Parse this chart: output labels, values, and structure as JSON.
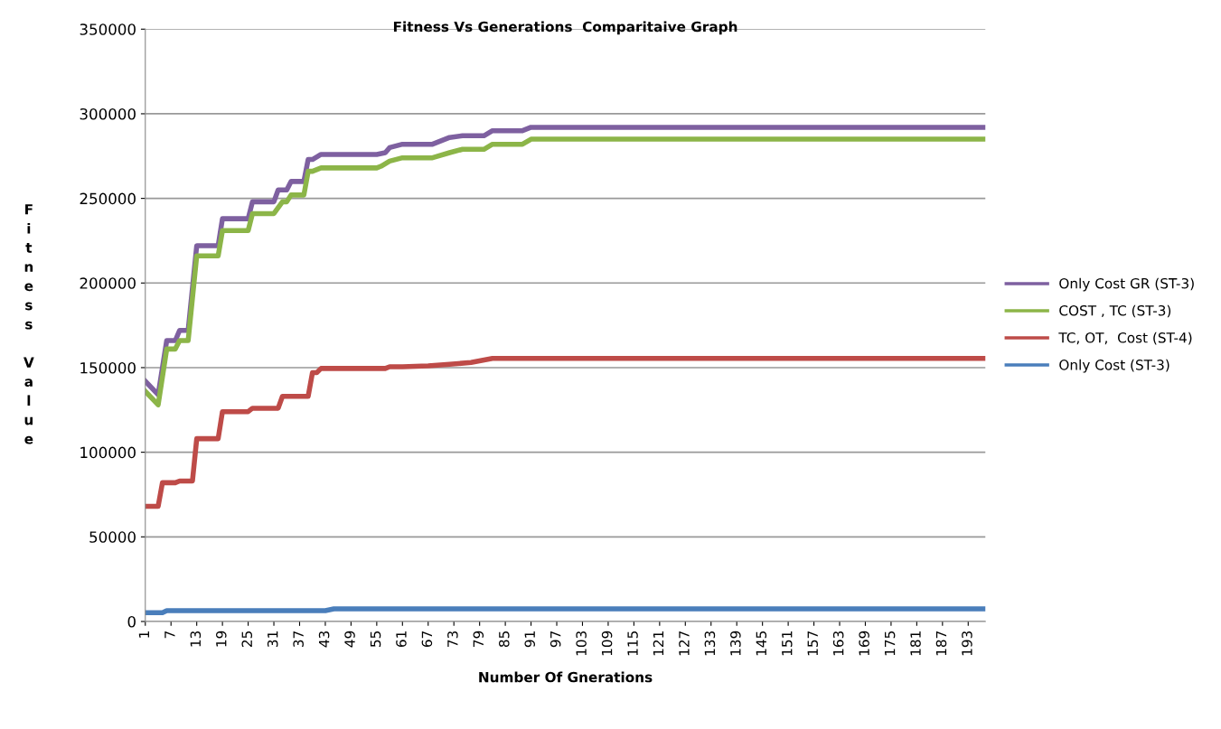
{
  "chart_data": {
    "type": "line",
    "title": "Fitness Vs Generations  Comparitaive Graph",
    "xlabel": "Number Of Gnerations",
    "ylabel": "Fitness Value",
    "xlim": [
      1,
      197
    ],
    "xticks": [
      1,
      7,
      13,
      19,
      25,
      31,
      37,
      43,
      49,
      55,
      61,
      67,
      73,
      79,
      85,
      91,
      97,
      103,
      109,
      115,
      121,
      127,
      133,
      139,
      145,
      151,
      157,
      163,
      169,
      175,
      181,
      187,
      193
    ],
    "ylim": [
      0,
      350000
    ],
    "yticks": [
      0,
      50000,
      100000,
      150000,
      200000,
      250000,
      300000,
      350000
    ],
    "grid": "y",
    "legend": "right",
    "marker": "none",
    "line_style": "solid",
    "series": [
      {
        "name": "Only Cost GR (ST-3)",
        "color": "#7e60a0",
        "x": [
          1,
          4,
          6,
          8,
          9,
          11,
          13,
          18,
          19,
          25,
          26,
          31,
          32,
          34,
          35,
          38,
          39,
          40,
          42,
          55,
          57,
          58,
          61,
          68,
          72,
          75,
          80,
          82,
          89,
          91,
          197
        ],
        "values": [
          142000,
          134000,
          166000,
          166000,
          172000,
          172000,
          222000,
          222000,
          238000,
          238000,
          248000,
          248000,
          255000,
          255000,
          260000,
          260000,
          273000,
          273000,
          276000,
          276000,
          277000,
          280000,
          282000,
          282000,
          286000,
          287000,
          287000,
          290000,
          290000,
          292000,
          292000
        ]
      },
      {
        "name": "COST , TC (ST-3)",
        "color": "#8cb548",
        "x": [
          1,
          4,
          6,
          8,
          9,
          11,
          13,
          18,
          19,
          25,
          26,
          31,
          33,
          34,
          35,
          38,
          39,
          40,
          42,
          55,
          56,
          58,
          61,
          68,
          72,
          75,
          80,
          82,
          89,
          91,
          197
        ],
        "values": [
          136000,
          128000,
          161000,
          161000,
          166000,
          166000,
          216000,
          216000,
          231000,
          231000,
          241000,
          241000,
          248000,
          248000,
          252000,
          252000,
          266000,
          266000,
          268000,
          268000,
          269000,
          272000,
          274000,
          274000,
          277000,
          279000,
          279000,
          282000,
          282000,
          285000,
          285000
        ]
      },
      {
        "name": "TC, OT,  Cost (ST-4)",
        "color": "#be4b48",
        "x": [
          1,
          4,
          5,
          8,
          9,
          12,
          13,
          18,
          19,
          25,
          26,
          32,
          33,
          39,
          40,
          41,
          42,
          57,
          58,
          61,
          67,
          72,
          77,
          82,
          197
        ],
        "values": [
          68000,
          68000,
          82000,
          82000,
          83000,
          83000,
          108000,
          108000,
          124000,
          124000,
          126000,
          126000,
          133000,
          133000,
          147000,
          147000,
          149500,
          149500,
          150500,
          150500,
          151000,
          152000,
          153000,
          155500,
          155500
        ]
      },
      {
        "name": "Only Cost (ST-3)",
        "color": "#4a7ebb",
        "x": [
          1,
          5,
          6,
          43,
          45,
          197
        ],
        "values": [
          5200,
          5200,
          6400,
          6400,
          7500,
          7500
        ]
      }
    ]
  }
}
